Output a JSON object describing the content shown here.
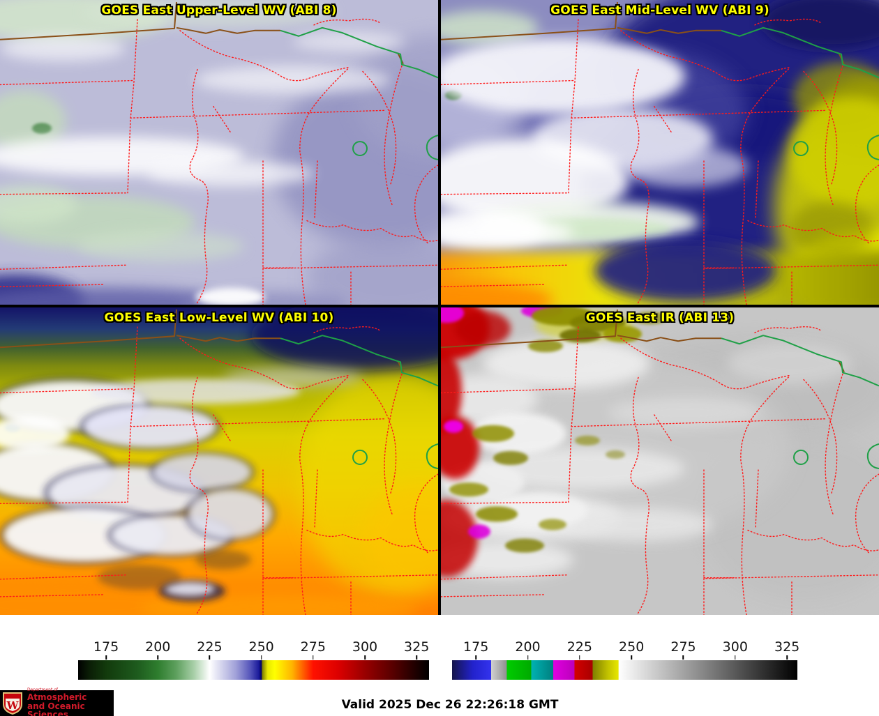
{
  "panels": [
    {
      "title": "GOES East Upper-Level WV (ABI 8)"
    },
    {
      "title": "GOES East Mid-Level WV (ABI 9)"
    },
    {
      "title": "GOES East Low-Level WV (ABI 10)"
    },
    {
      "title": "GOES East IR (ABI 13)"
    }
  ],
  "title_color": "#ffff00",
  "boundary_colors": {
    "state_lines": "#ff1a1a",
    "international_border": "#8a5018",
    "border_water": "#1fa047"
  },
  "colorbars": {
    "left": {
      "ticks": [
        175,
        200,
        225,
        250,
        275,
        300,
        325
      ],
      "range": [
        161.5,
        331
      ],
      "stops": [
        [
          0,
          "#000000"
        ],
        [
          0.03,
          "#0a1c06"
        ],
        [
          0.08,
          "#123a0c"
        ],
        [
          0.17,
          "#1e5c1e"
        ],
        [
          0.227,
          "#2e7d2e"
        ],
        [
          0.28,
          "#5ea05e"
        ],
        [
          0.33,
          "#a8cfa8"
        ],
        [
          0.3746,
          "#ffffff"
        ],
        [
          0.41,
          "#d2d2ec"
        ],
        [
          0.45,
          "#a0a0d8"
        ],
        [
          0.49,
          "#5656bb"
        ],
        [
          0.515,
          "#1a1a9a"
        ],
        [
          0.522,
          "#000060"
        ],
        [
          0.525,
          "#7f7f00"
        ],
        [
          0.54,
          "#e8e800"
        ],
        [
          0.56,
          "#ffff00"
        ],
        [
          0.61,
          "#ffb400"
        ],
        [
          0.6696,
          "#ff1100"
        ],
        [
          0.74,
          "#dd0000"
        ],
        [
          0.8171,
          "#990000"
        ],
        [
          0.9,
          "#550000"
        ],
        [
          0.9646,
          "#1c0000"
        ],
        [
          1,
          "#000000"
        ]
      ]
    },
    "right": {
      "ticks": [
        175,
        200,
        225,
        250,
        275,
        300,
        325
      ],
      "range": [
        163.5,
        330
      ],
      "stops": [
        [
          0,
          "#15154a"
        ],
        [
          0.06,
          "#2222cc"
        ],
        [
          0.113,
          "#3333ee"
        ],
        [
          0.1135,
          "#d0d0d0"
        ],
        [
          0.158,
          "#8f8f8f"
        ],
        [
          0.1585,
          "#00cc00"
        ],
        [
          0.229,
          "#00aa00"
        ],
        [
          0.2295,
          "#00b2b2"
        ],
        [
          0.293,
          "#007f7f"
        ],
        [
          0.2935,
          "#e000e0"
        ],
        [
          0.354,
          "#bb00bb"
        ],
        [
          0.3545,
          "#d40000"
        ],
        [
          0.407,
          "#a80000"
        ],
        [
          0.4075,
          "#7f7f00"
        ],
        [
          0.45,
          "#c0c000"
        ],
        [
          0.482,
          "#e8e800"
        ],
        [
          0.4825,
          "#ffffff"
        ],
        [
          1,
          "#000000"
        ]
      ]
    }
  },
  "footer": {
    "valid_label": "Valid 2025 Dec 26 22:26:18 GMT",
    "logo": {
      "dept": "Department of",
      "line1": "Atmospheric",
      "line2": "and Oceanic Sciences",
      "letter": "W",
      "color": "#d11a2a"
    }
  }
}
